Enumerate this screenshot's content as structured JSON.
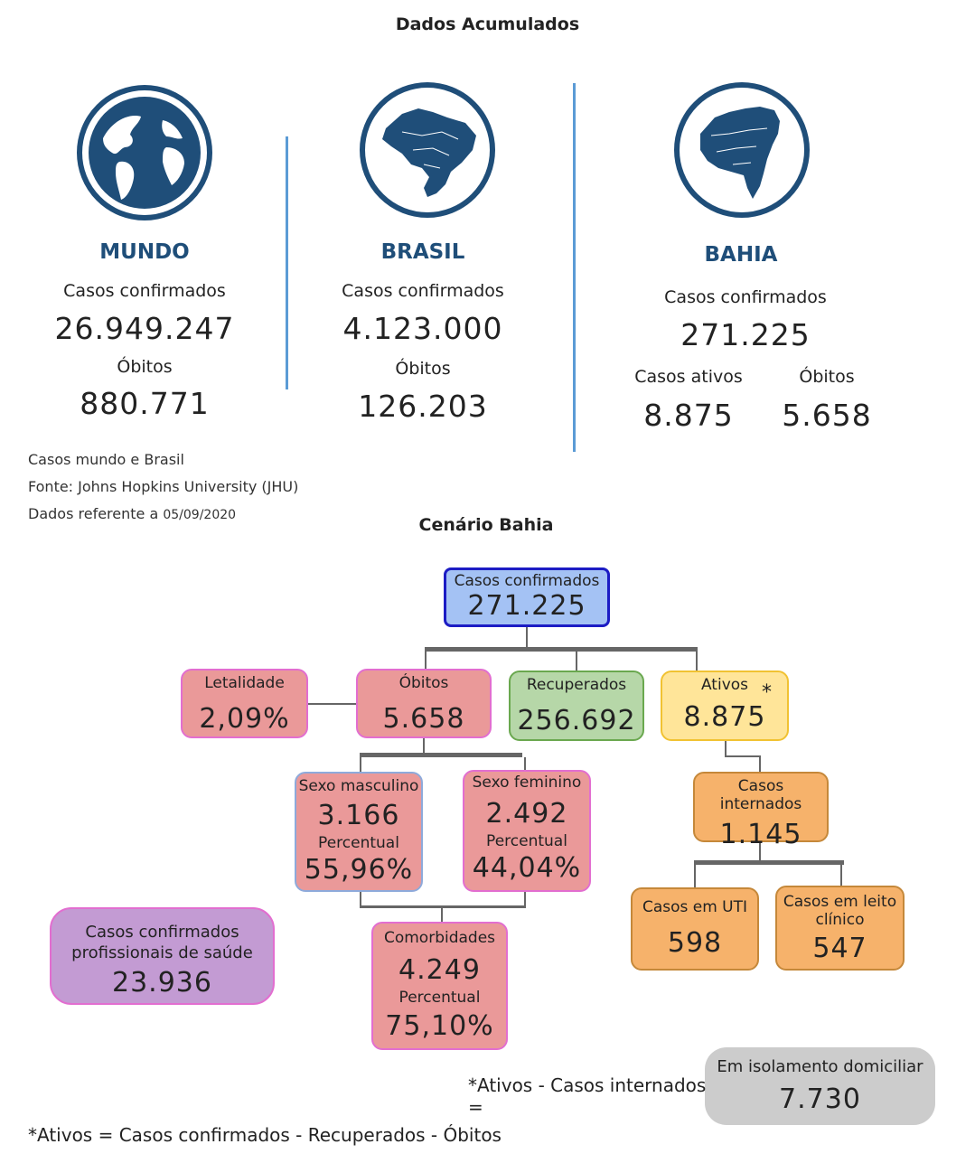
{
  "header": {
    "title": "Dados Acumulados"
  },
  "mundo": {
    "name": "MUNDO",
    "confirmed_label": "Casos confirmados",
    "confirmed": "26.949.247",
    "deaths_label": "Óbitos",
    "deaths": "880.771",
    "icon": "globe-icon"
  },
  "brasil": {
    "name": "BRASIL",
    "confirmed_label": "Casos confirmados",
    "confirmed": "4.123.000",
    "deaths_label": "Óbitos",
    "deaths": "126.203",
    "icon": "brazil-map-icon"
  },
  "bahia": {
    "name": "BAHIA",
    "confirmed_label": "Casos confirmados",
    "confirmed": "271.225",
    "active_label": "Casos ativos",
    "active": "8.875",
    "deaths_label": "Óbitos",
    "deaths": "5.658",
    "icon": "bahia-map-icon"
  },
  "source": {
    "line1": "Casos mundo e Brasil",
    "line2": "Fonte: Johns Hopkins University (JHU)",
    "line3_prefix": "Dados referente a ",
    "line3_date": "05/09/2020"
  },
  "scenario": {
    "title": "Cenário Bahia",
    "confirmed": {
      "label": "Casos confirmados",
      "value": "271.225"
    },
    "lethality": {
      "label": "Letalidade",
      "value": "2,09%"
    },
    "deaths": {
      "label": "Óbitos",
      "value": "5.658"
    },
    "recovered": {
      "label": "Recuperados",
      "value": "256.692"
    },
    "active": {
      "label": "Ativos",
      "value": "8.875",
      "mark": "*"
    },
    "male": {
      "label": "Sexo masculino",
      "value": "3.166",
      "pct_label": "Percentual",
      "pct": "55,96%"
    },
    "female": {
      "label": "Sexo feminino",
      "value": "2.492",
      "pct_label": "Percentual",
      "pct": "44,04%"
    },
    "hospitalized": {
      "label": "Casos internados",
      "value": "1.145"
    },
    "icu": {
      "label": "Casos em UTI",
      "value": "598"
    },
    "ward": {
      "label": "Casos em leito clínico",
      "value": "547"
    },
    "health_workers": {
      "label": "Casos confirmados profissionais de saúde",
      "value": "23.936"
    },
    "comorbidities": {
      "label": "Comorbidades",
      "value": "4.249",
      "pct_label": "Percentual",
      "pct": "75,10%"
    },
    "isolation": {
      "label": "Em isolamento domiciliar",
      "value": "7.730"
    },
    "note_isolation": "*Ativos - Casos internados =",
    "note_active": "*Ativos = Casos confirmados - Recuperados - Óbitos"
  },
  "colors": {
    "brand_blue": "#1f4e79",
    "divider": "#5b9bd5"
  }
}
